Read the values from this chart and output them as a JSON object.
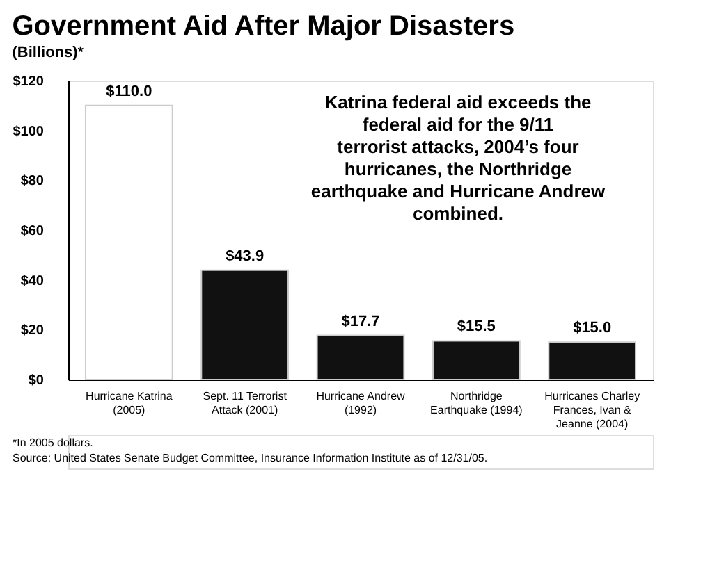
{
  "chart_data": {
    "type": "bar",
    "title": "Government Aid After Major Disasters",
    "subtitle": "(Billions)*",
    "categories": [
      "Hurricane Katrina (2005)",
      "Sept. 11 Terrorist Attack (2001)",
      "Hurricane Andrew (1992)",
      "Northridge Earthquake (1994)",
      "Hurricanes Charley Frances, Ivan & Jeanne (2004)"
    ],
    "values": [
      110.0,
      43.9,
      17.7,
      15.5,
      15.0
    ],
    "colors": [
      "#ffffff",
      "#111111",
      "#111111",
      "#111111",
      "#111111"
    ],
    "value_labels": [
      "$110.0",
      "$43.9",
      "$17.7",
      "$15.5",
      "$15.0"
    ],
    "ylim": [
      0,
      120
    ],
    "yticks": [
      {
        "value": 0,
        "label": "$0"
      },
      {
        "value": 20,
        "label": "$20"
      },
      {
        "value": 40,
        "label": "$40"
      },
      {
        "value": 60,
        "label": "$60"
      },
      {
        "value": 80,
        "label": "$80"
      },
      {
        "value": 100,
        "label": "$100"
      },
      {
        "value": 120,
        "label": "$120"
      }
    ],
    "grid": false,
    "annotations": [
      "Katrina federal aid exceeds the federal aid for the 9/11 terrorist attacks, 2004’s four hurricanes, the Northridge earthquake and Hurricane Andrew combined.",
      "*In 2005 dollars.",
      "Source: United States Senate Budget Committee, Insurance Information Institute as of 12/31/05."
    ]
  }
}
